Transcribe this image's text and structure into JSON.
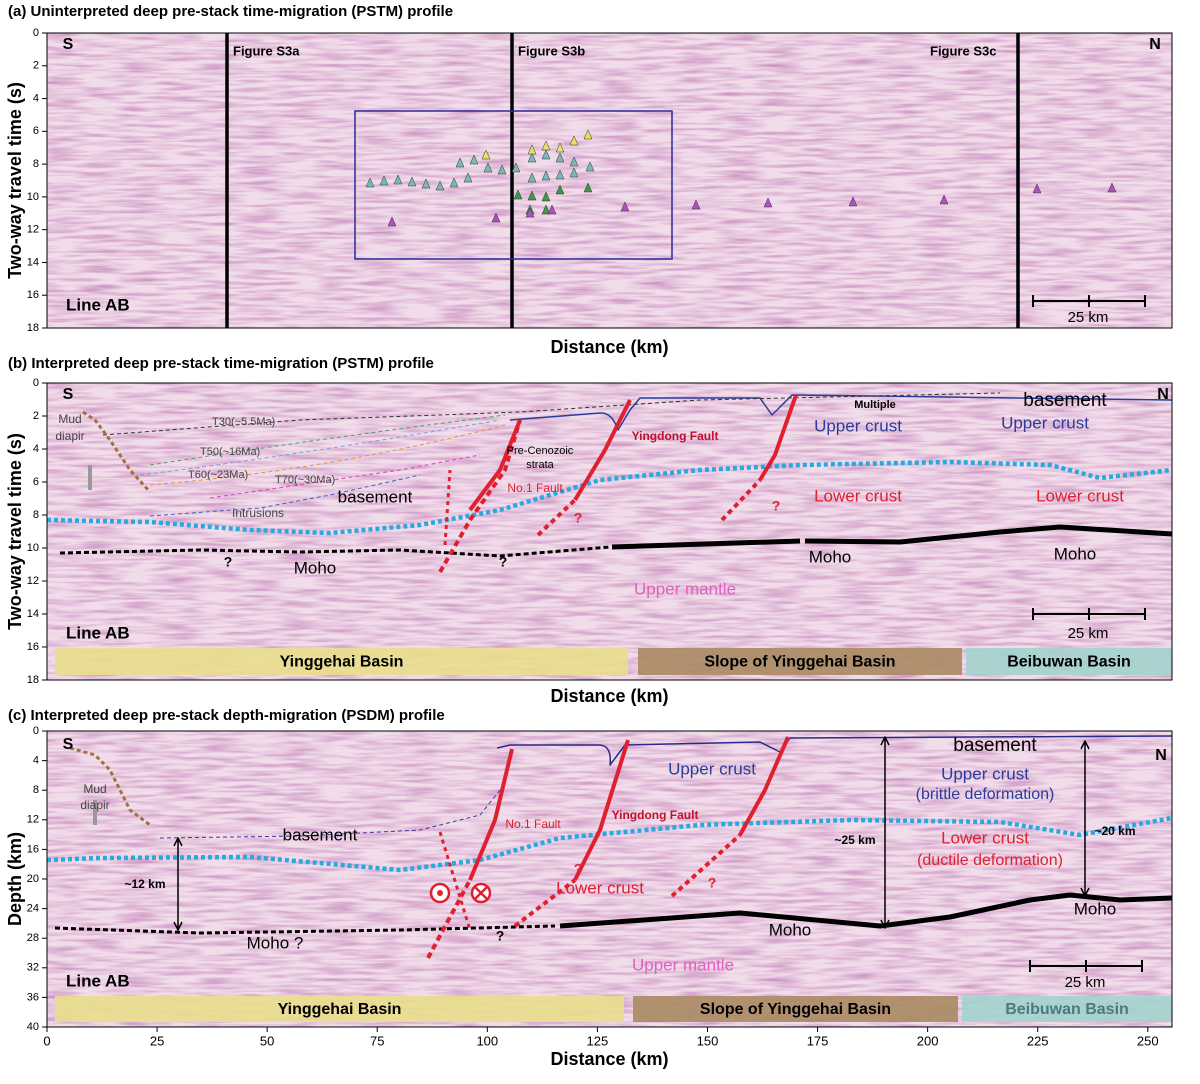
{
  "chart_data": [
    {
      "type": "seismic-profile",
      "title": "(a) Uninterpreted deep pre-stack time-migration (PSTM) profile",
      "xlabel": "Distance (km)",
      "ylabel": "Two-way travel time (s)",
      "xlim": [
        0,
        255.5
      ],
      "ylim": [
        18,
        0
      ],
      "yticks": [
        0,
        2,
        4,
        6,
        8,
        10,
        12,
        14,
        16,
        18
      ],
      "annotations": [
        "S",
        "N",
        "Figure S3a",
        "Figure S3b",
        "Figure S3c",
        "Line AB",
        "25 km"
      ]
    },
    {
      "type": "seismic-profile",
      "title": "(b) Interpreted deep pre-stack time-migration (PSTM) profile",
      "xlabel": "Distance (km)",
      "ylabel": "Two-way travel time (s)",
      "xlim": [
        0,
        255.5
      ],
      "ylim": [
        18,
        0
      ],
      "yticks": [
        0,
        2,
        4,
        6,
        8,
        10,
        12,
        14,
        16,
        18
      ],
      "annotations": [
        "S",
        "N",
        "basement",
        "Multiple",
        "Upper crust",
        "Upper crust",
        "Lower crust",
        "Lower crust",
        "Moho",
        "Moho",
        "Moho",
        "Mud",
        "diapir",
        "T30(~5.5Ma)",
        "T50(~16Ma)",
        "T60(~23Ma)",
        "T70(~30Ma)",
        "basement",
        "Intrusions",
        "Pre-Cenozoic",
        "strata",
        "No.1 Fault",
        "Yingdong Fault",
        "?",
        "?",
        "?",
        "?",
        "Upper mantle",
        "Line AB",
        "25 km"
      ],
      "basins": [
        {
          "name": "Yinggehai Basin",
          "color": "#e9de8c"
        },
        {
          "name": "Slope of Yinggehai Basin",
          "color": "#aa8a62"
        },
        {
          "name": "Beibuwan Basin",
          "color": "#a3d3cd"
        }
      ]
    },
    {
      "type": "seismic-profile",
      "title": "(c) Interpreted deep pre-stack depth-migration (PSDM) profile",
      "xlabel": "Distance (km)",
      "ylabel": "Depth (km)",
      "xlim": [
        0,
        255.5
      ],
      "xticks": [
        0,
        25,
        50,
        75,
        100,
        125,
        150,
        175,
        200,
        225,
        250
      ],
      "ylim": [
        40,
        0
      ],
      "yticks": [
        0,
        4,
        8,
        12,
        16,
        20,
        24,
        28,
        32,
        36,
        40
      ],
      "annotations": [
        "S",
        "N",
        "basement",
        "Upper crust",
        "Upper crust",
        "(brittle deformation)",
        "Lower crust",
        "(ductile deformation)",
        "~25 km",
        "~20 km",
        "~12 km",
        "Mud",
        "diapir",
        "basement",
        "No.1 Fault",
        "Yingdong Fault",
        "Lower crust",
        "?",
        "?",
        "?",
        "Moho ?",
        "Moho",
        "Moho",
        "Upper mantle",
        "Line AB",
        "25 km"
      ],
      "basins": [
        {
          "name": "Yinggehai Basin",
          "color": "#e9de8c"
        },
        {
          "name": "Slope of Yinggehai Basin",
          "color": "#aa8a62"
        },
        {
          "name": "Beibuwan Basin",
          "color": "#a3d3cd"
        }
      ]
    }
  ]
}
